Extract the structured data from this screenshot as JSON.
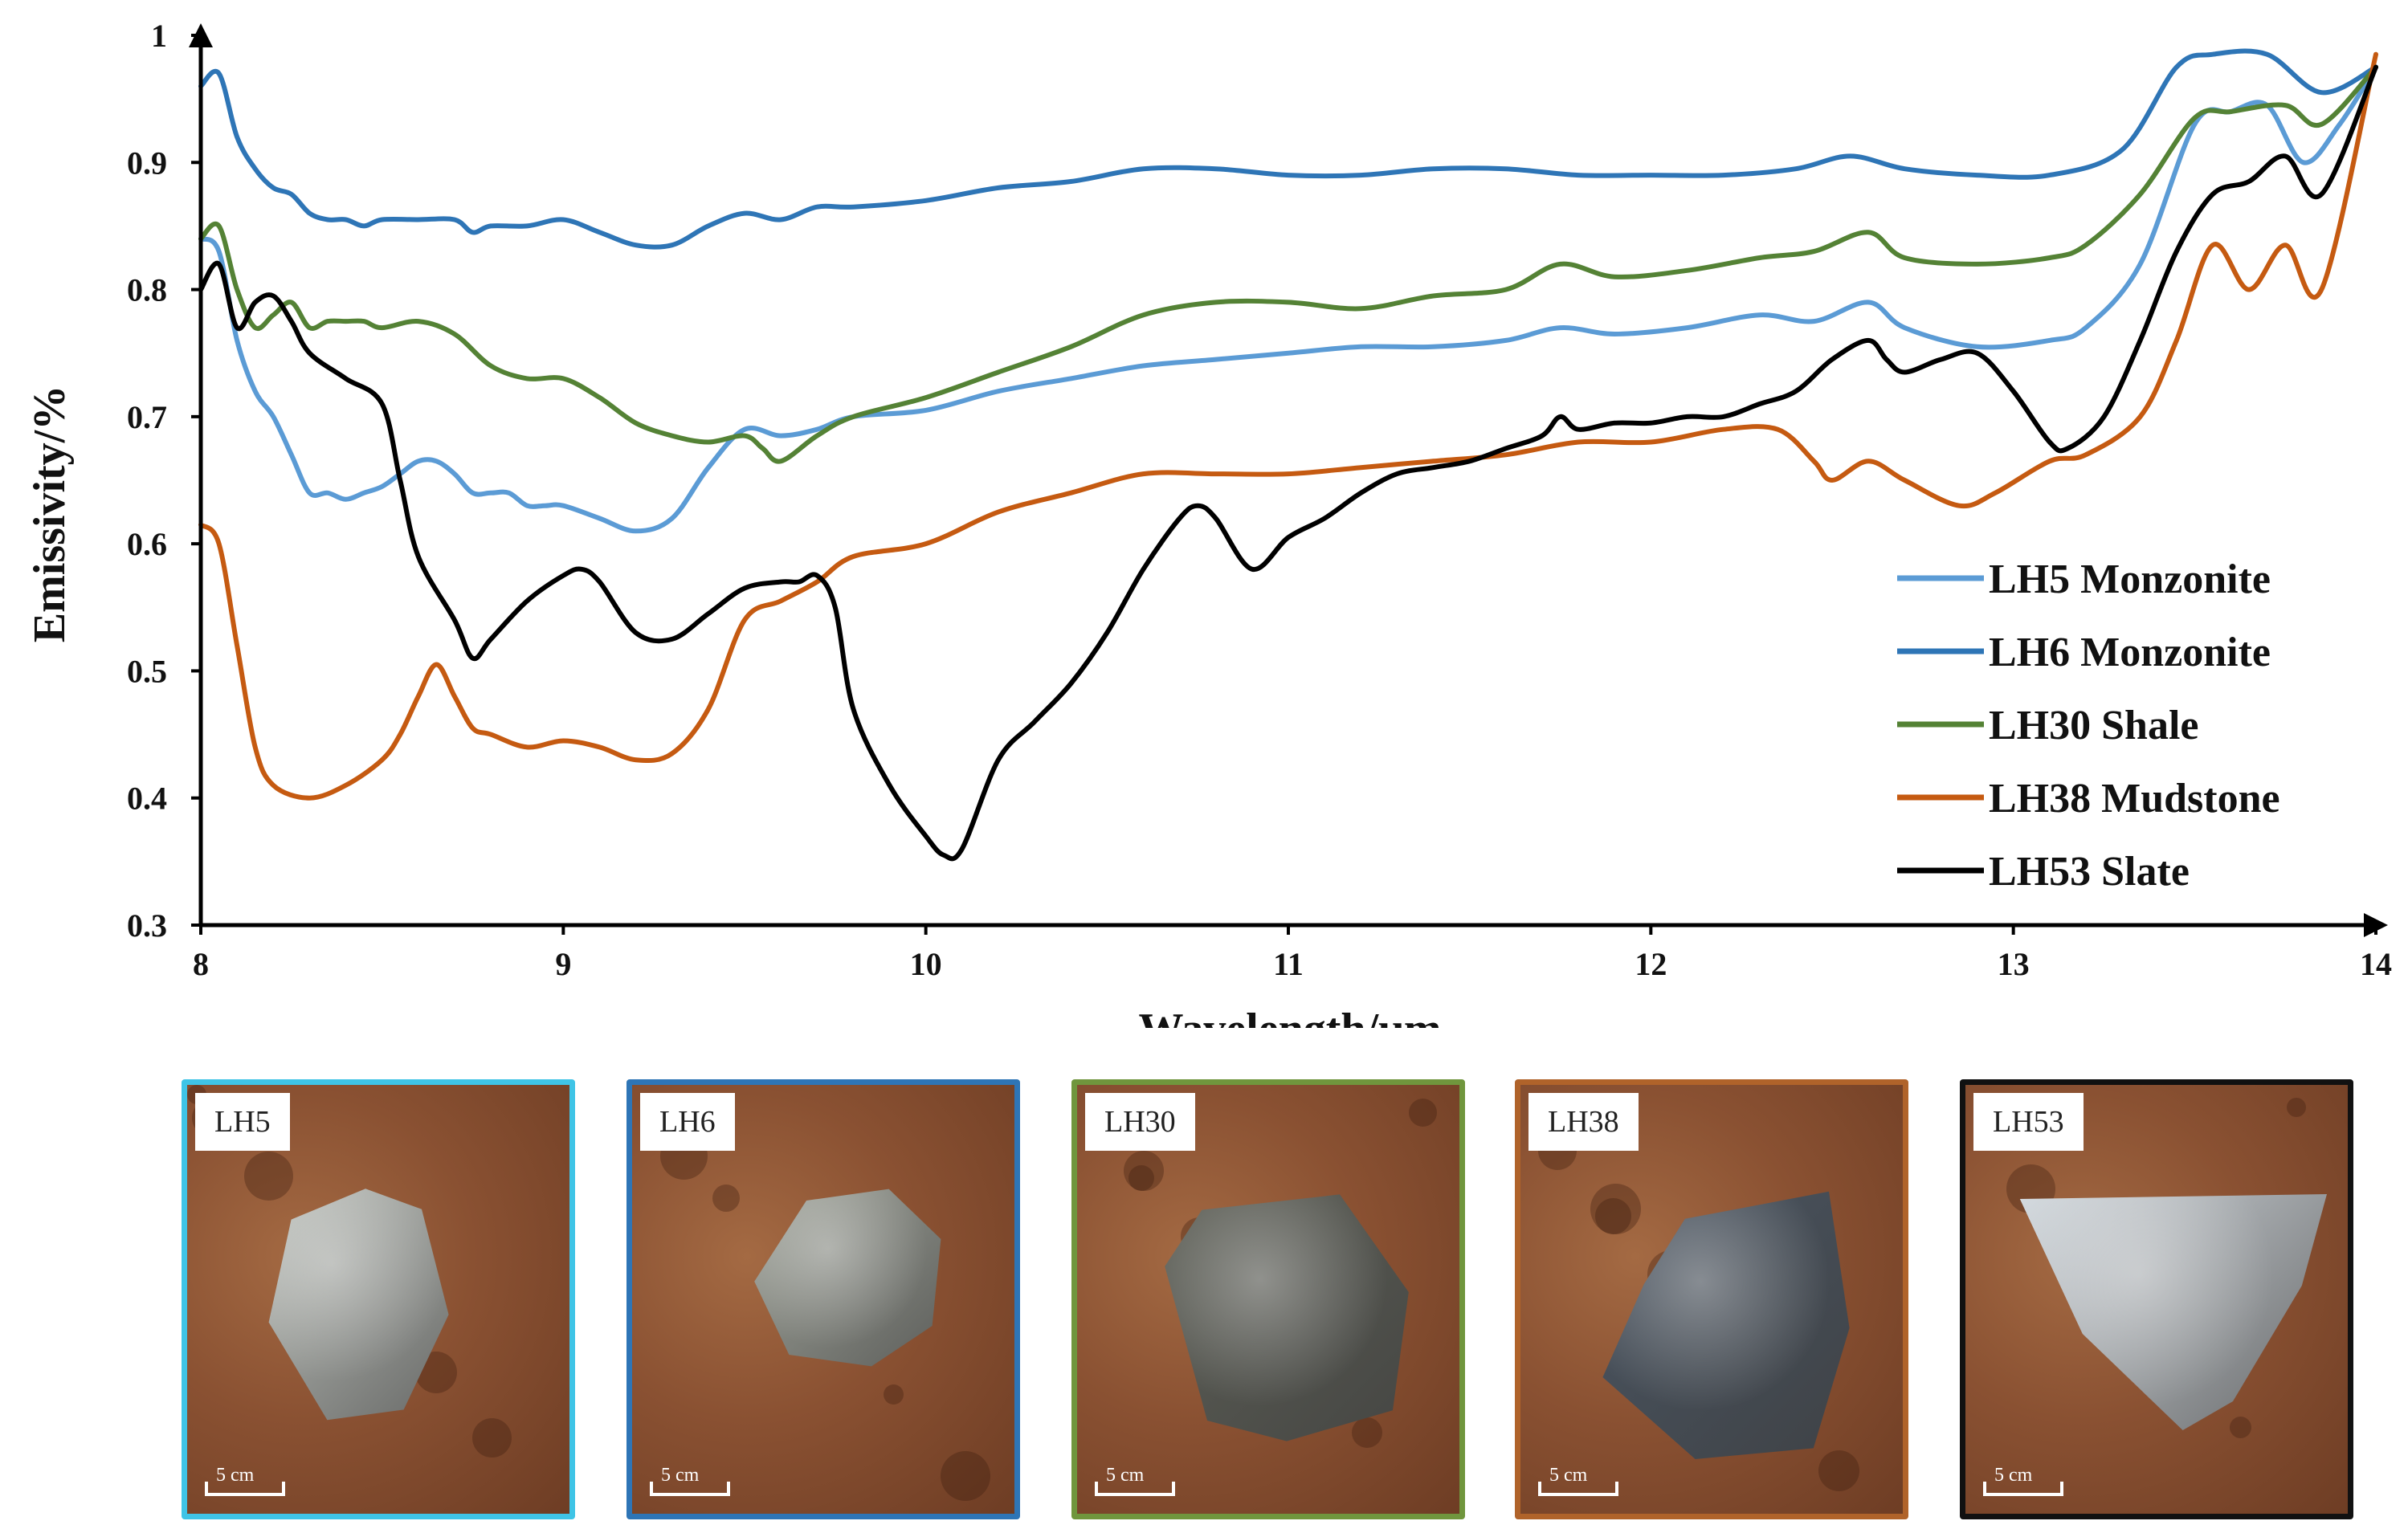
{
  "chart_data": {
    "type": "line",
    "xlabel": "Wavelength/μm",
    "ylabel": "Emissivity/%",
    "xlim": [
      8,
      14
    ],
    "ylim": [
      0.3,
      1.0
    ],
    "xticks": [
      "8",
      "9",
      "10",
      "11",
      "12",
      "13",
      "14"
    ],
    "yticks": [
      "0.3",
      "0.4",
      "0.5",
      "0.6",
      "0.7",
      "0.8",
      "0.9",
      "1"
    ],
    "grid": false,
    "legend_position": "right",
    "series": [
      {
        "name": "LH5 Monzonite",
        "color": "#5b9bd5",
        "points": [
          [
            8.0,
            0.84
          ],
          [
            8.05,
            0.83
          ],
          [
            8.1,
            0.76
          ],
          [
            8.15,
            0.72
          ],
          [
            8.2,
            0.7
          ],
          [
            8.25,
            0.67
          ],
          [
            8.3,
            0.64
          ],
          [
            8.35,
            0.64
          ],
          [
            8.4,
            0.635
          ],
          [
            8.45,
            0.64
          ],
          [
            8.5,
            0.645
          ],
          [
            8.55,
            0.655
          ],
          [
            8.6,
            0.665
          ],
          [
            8.65,
            0.665
          ],
          [
            8.7,
            0.655
          ],
          [
            8.75,
            0.64
          ],
          [
            8.8,
            0.64
          ],
          [
            8.85,
            0.64
          ],
          [
            8.9,
            0.63
          ],
          [
            8.95,
            0.63
          ],
          [
            9.0,
            0.63
          ],
          [
            9.1,
            0.62
          ],
          [
            9.2,
            0.61
          ],
          [
            9.3,
            0.62
          ],
          [
            9.4,
            0.66
          ],
          [
            9.5,
            0.69
          ],
          [
            9.6,
            0.685
          ],
          [
            9.7,
            0.69
          ],
          [
            9.8,
            0.7
          ],
          [
            10.0,
            0.705
          ],
          [
            10.2,
            0.72
          ],
          [
            10.4,
            0.73
          ],
          [
            10.6,
            0.74
          ],
          [
            10.8,
            0.745
          ],
          [
            11.0,
            0.75
          ],
          [
            11.2,
            0.755
          ],
          [
            11.4,
            0.755
          ],
          [
            11.6,
            0.76
          ],
          [
            11.75,
            0.77
          ],
          [
            11.9,
            0.765
          ],
          [
            12.1,
            0.77
          ],
          [
            12.3,
            0.78
          ],
          [
            12.45,
            0.775
          ],
          [
            12.6,
            0.79
          ],
          [
            12.7,
            0.77
          ],
          [
            12.9,
            0.755
          ],
          [
            13.1,
            0.76
          ],
          [
            13.2,
            0.77
          ],
          [
            13.35,
            0.82
          ],
          [
            13.5,
            0.93
          ],
          [
            13.6,
            0.94
          ],
          [
            13.7,
            0.945
          ],
          [
            13.8,
            0.9
          ],
          [
            13.9,
            0.93
          ],
          [
            14.0,
            0.975
          ]
        ]
      },
      {
        "name": "LH6 Monzonite",
        "color": "#2e75b6",
        "points": [
          [
            8.0,
            0.96
          ],
          [
            8.05,
            0.97
          ],
          [
            8.1,
            0.92
          ],
          [
            8.15,
            0.895
          ],
          [
            8.2,
            0.88
          ],
          [
            8.25,
            0.875
          ],
          [
            8.3,
            0.86
          ],
          [
            8.35,
            0.855
          ],
          [
            8.4,
            0.855
          ],
          [
            8.45,
            0.85
          ],
          [
            8.5,
            0.855
          ],
          [
            8.6,
            0.855
          ],
          [
            8.7,
            0.855
          ],
          [
            8.75,
            0.845
          ],
          [
            8.8,
            0.85
          ],
          [
            8.9,
            0.85
          ],
          [
            9.0,
            0.855
          ],
          [
            9.1,
            0.845
          ],
          [
            9.2,
            0.835
          ],
          [
            9.3,
            0.835
          ],
          [
            9.4,
            0.85
          ],
          [
            9.5,
            0.86
          ],
          [
            9.6,
            0.855
          ],
          [
            9.7,
            0.865
          ],
          [
            9.8,
            0.865
          ],
          [
            10.0,
            0.87
          ],
          [
            10.2,
            0.88
          ],
          [
            10.4,
            0.885
          ],
          [
            10.6,
            0.895
          ],
          [
            10.8,
            0.895
          ],
          [
            11.0,
            0.89
          ],
          [
            11.2,
            0.89
          ],
          [
            11.4,
            0.895
          ],
          [
            11.6,
            0.895
          ],
          [
            11.8,
            0.89
          ],
          [
            12.0,
            0.89
          ],
          [
            12.2,
            0.89
          ],
          [
            12.4,
            0.895
          ],
          [
            12.55,
            0.905
          ],
          [
            12.7,
            0.895
          ],
          [
            12.9,
            0.89
          ],
          [
            13.1,
            0.89
          ],
          [
            13.3,
            0.91
          ],
          [
            13.45,
            0.975
          ],
          [
            13.55,
            0.985
          ],
          [
            13.7,
            0.985
          ],
          [
            13.85,
            0.955
          ],
          [
            14.0,
            0.975
          ]
        ]
      },
      {
        "name": "LH30 Shale",
        "color": "#548235",
        "points": [
          [
            8.0,
            0.84
          ],
          [
            8.05,
            0.85
          ],
          [
            8.1,
            0.8
          ],
          [
            8.15,
            0.77
          ],
          [
            8.2,
            0.78
          ],
          [
            8.25,
            0.79
          ],
          [
            8.3,
            0.77
          ],
          [
            8.35,
            0.775
          ],
          [
            8.4,
            0.775
          ],
          [
            8.45,
            0.775
          ],
          [
            8.5,
            0.77
          ],
          [
            8.6,
            0.775
          ],
          [
            8.7,
            0.765
          ],
          [
            8.8,
            0.74
          ],
          [
            8.9,
            0.73
          ],
          [
            9.0,
            0.73
          ],
          [
            9.1,
            0.715
          ],
          [
            9.2,
            0.695
          ],
          [
            9.3,
            0.685
          ],
          [
            9.4,
            0.68
          ],
          [
            9.5,
            0.685
          ],
          [
            9.55,
            0.675
          ],
          [
            9.6,
            0.665
          ],
          [
            9.7,
            0.685
          ],
          [
            9.8,
            0.7
          ],
          [
            10.0,
            0.715
          ],
          [
            10.2,
            0.735
          ],
          [
            10.4,
            0.755
          ],
          [
            10.6,
            0.78
          ],
          [
            10.8,
            0.79
          ],
          [
            11.0,
            0.79
          ],
          [
            11.2,
            0.785
          ],
          [
            11.4,
            0.795
          ],
          [
            11.6,
            0.8
          ],
          [
            11.75,
            0.82
          ],
          [
            11.9,
            0.81
          ],
          [
            12.1,
            0.815
          ],
          [
            12.3,
            0.825
          ],
          [
            12.45,
            0.83
          ],
          [
            12.6,
            0.845
          ],
          [
            12.7,
            0.825
          ],
          [
            12.9,
            0.82
          ],
          [
            13.1,
            0.825
          ],
          [
            13.2,
            0.835
          ],
          [
            13.35,
            0.875
          ],
          [
            13.5,
            0.935
          ],
          [
            13.6,
            0.94
          ],
          [
            13.75,
            0.945
          ],
          [
            13.85,
            0.93
          ],
          [
            14.0,
            0.975
          ]
        ]
      },
      {
        "name": "LH38 Mudstone",
        "color": "#c55a11",
        "points": [
          [
            8.0,
            0.615
          ],
          [
            8.05,
            0.6
          ],
          [
            8.1,
            0.52
          ],
          [
            8.15,
            0.44
          ],
          [
            8.2,
            0.41
          ],
          [
            8.3,
            0.4
          ],
          [
            8.4,
            0.41
          ],
          [
            8.5,
            0.43
          ],
          [
            8.55,
            0.45
          ],
          [
            8.6,
            0.48
          ],
          [
            8.65,
            0.505
          ],
          [
            8.7,
            0.48
          ],
          [
            8.75,
            0.455
          ],
          [
            8.8,
            0.45
          ],
          [
            8.9,
            0.44
          ],
          [
            9.0,
            0.445
          ],
          [
            9.1,
            0.44
          ],
          [
            9.2,
            0.43
          ],
          [
            9.3,
            0.435
          ],
          [
            9.4,
            0.47
          ],
          [
            9.5,
            0.54
          ],
          [
            9.6,
            0.555
          ],
          [
            9.7,
            0.57
          ],
          [
            9.8,
            0.59
          ],
          [
            10.0,
            0.6
          ],
          [
            10.2,
            0.625
          ],
          [
            10.4,
            0.64
          ],
          [
            10.6,
            0.655
          ],
          [
            10.8,
            0.655
          ],
          [
            11.0,
            0.655
          ],
          [
            11.2,
            0.66
          ],
          [
            11.4,
            0.665
          ],
          [
            11.6,
            0.67
          ],
          [
            11.8,
            0.68
          ],
          [
            12.0,
            0.68
          ],
          [
            12.2,
            0.69
          ],
          [
            12.35,
            0.69
          ],
          [
            12.45,
            0.665
          ],
          [
            12.5,
            0.65
          ],
          [
            12.6,
            0.665
          ],
          [
            12.7,
            0.65
          ],
          [
            12.85,
            0.63
          ],
          [
            12.95,
            0.64
          ],
          [
            13.1,
            0.665
          ],
          [
            13.2,
            0.67
          ],
          [
            13.35,
            0.7
          ],
          [
            13.45,
            0.76
          ],
          [
            13.55,
            0.835
          ],
          [
            13.65,
            0.8
          ],
          [
            13.75,
            0.835
          ],
          [
            13.85,
            0.8
          ],
          [
            14.0,
            0.985
          ]
        ]
      },
      {
        "name": "LH53 Slate",
        "color": "#000000",
        "points": [
          [
            8.0,
            0.8
          ],
          [
            8.05,
            0.82
          ],
          [
            8.1,
            0.77
          ],
          [
            8.15,
            0.79
          ],
          [
            8.2,
            0.795
          ],
          [
            8.25,
            0.775
          ],
          [
            8.3,
            0.75
          ],
          [
            8.4,
            0.73
          ],
          [
            8.5,
            0.71
          ],
          [
            8.55,
            0.65
          ],
          [
            8.6,
            0.59
          ],
          [
            8.7,
            0.54
          ],
          [
            8.75,
            0.51
          ],
          [
            8.8,
            0.525
          ],
          [
            8.9,
            0.555
          ],
          [
            9.0,
            0.575
          ],
          [
            9.05,
            0.58
          ],
          [
            9.1,
            0.57
          ],
          [
            9.2,
            0.53
          ],
          [
            9.3,
            0.525
          ],
          [
            9.4,
            0.545
          ],
          [
            9.5,
            0.565
          ],
          [
            9.6,
            0.57
          ],
          [
            9.65,
            0.57
          ],
          [
            9.7,
            0.575
          ],
          [
            9.75,
            0.55
          ],
          [
            9.8,
            0.47
          ],
          [
            9.9,
            0.41
          ],
          [
            10.0,
            0.37
          ],
          [
            10.05,
            0.355
          ],
          [
            10.1,
            0.36
          ],
          [
            10.2,
            0.43
          ],
          [
            10.3,
            0.46
          ],
          [
            10.4,
            0.49
          ],
          [
            10.5,
            0.53
          ],
          [
            10.6,
            0.58
          ],
          [
            10.7,
            0.62
          ],
          [
            10.75,
            0.63
          ],
          [
            10.8,
            0.62
          ],
          [
            10.9,
            0.58
          ],
          [
            11.0,
            0.605
          ],
          [
            11.1,
            0.62
          ],
          [
            11.2,
            0.64
          ],
          [
            11.3,
            0.655
          ],
          [
            11.4,
            0.66
          ],
          [
            11.5,
            0.665
          ],
          [
            11.6,
            0.675
          ],
          [
            11.7,
            0.685
          ],
          [
            11.75,
            0.7
          ],
          [
            11.8,
            0.69
          ],
          [
            11.9,
            0.695
          ],
          [
            12.0,
            0.695
          ],
          [
            12.1,
            0.7
          ],
          [
            12.2,
            0.7
          ],
          [
            12.3,
            0.71
          ],
          [
            12.4,
            0.72
          ],
          [
            12.5,
            0.745
          ],
          [
            12.6,
            0.76
          ],
          [
            12.65,
            0.745
          ],
          [
            12.7,
            0.735
          ],
          [
            12.8,
            0.745
          ],
          [
            12.9,
            0.75
          ],
          [
            13.0,
            0.72
          ],
          [
            13.1,
            0.68
          ],
          [
            13.15,
            0.675
          ],
          [
            13.25,
            0.7
          ],
          [
            13.35,
            0.76
          ],
          [
            13.45,
            0.83
          ],
          [
            13.55,
            0.875
          ],
          [
            13.65,
            0.885
          ],
          [
            13.75,
            0.905
          ],
          [
            13.85,
            0.875
          ],
          [
            14.0,
            0.975
          ]
        ]
      }
    ]
  },
  "photos": [
    {
      "label": "LH5",
      "scale": "5 cm",
      "frame_color": "#3fc4e6",
      "rock_color": "#c8ccc6"
    },
    {
      "label": "LH6",
      "scale": "5 cm",
      "frame_color": "#2e75b6",
      "rock_color": "#a6aaa0"
    },
    {
      "label": "LH30",
      "scale": "5 cm",
      "frame_color": "#70963d",
      "rock_color": "#5f6158"
    },
    {
      "label": "LH38",
      "scale": "5 cm",
      "frame_color": "#b0632a",
      "rock_color": "#4b5663"
    },
    {
      "label": "LH53",
      "scale": "5 cm",
      "frame_color": "#111111",
      "rock_color": "#d7dde2"
    }
  ]
}
